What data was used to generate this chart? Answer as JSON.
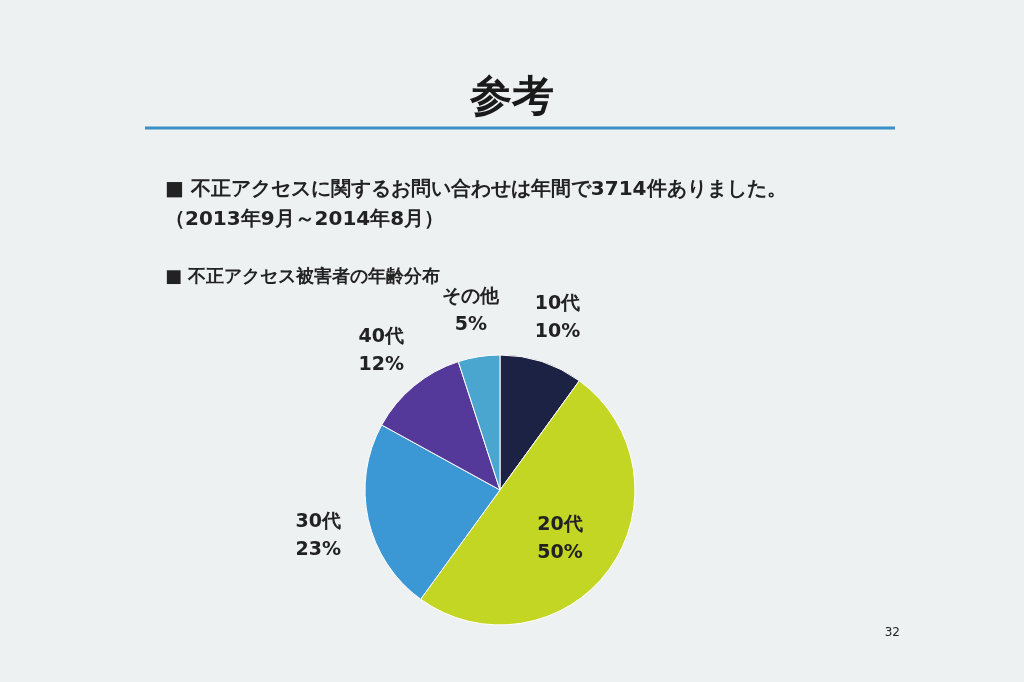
{
  "chart_data": {
    "type": "pie",
    "title": "参考",
    "annotations": [
      "■ 不正アクセスに関するお問い合わせは年間で3714件ありました。",
      "（2013年9月～2014年8月）",
      "■ 不正アクセス被害者の年齢分布",
      "32"
    ],
    "categories": [
      "10代",
      "20代",
      "30代",
      "40代",
      "その他"
    ],
    "values": [
      10,
      50,
      23,
      12,
      5
    ],
    "colors": [
      "#1c2244",
      "#c4d624",
      "#3b98d4",
      "#55399a",
      "#4aa6cf"
    ],
    "value_labels": [
      "10%",
      "50%",
      "23%",
      "12%",
      "5%"
    ]
  }
}
